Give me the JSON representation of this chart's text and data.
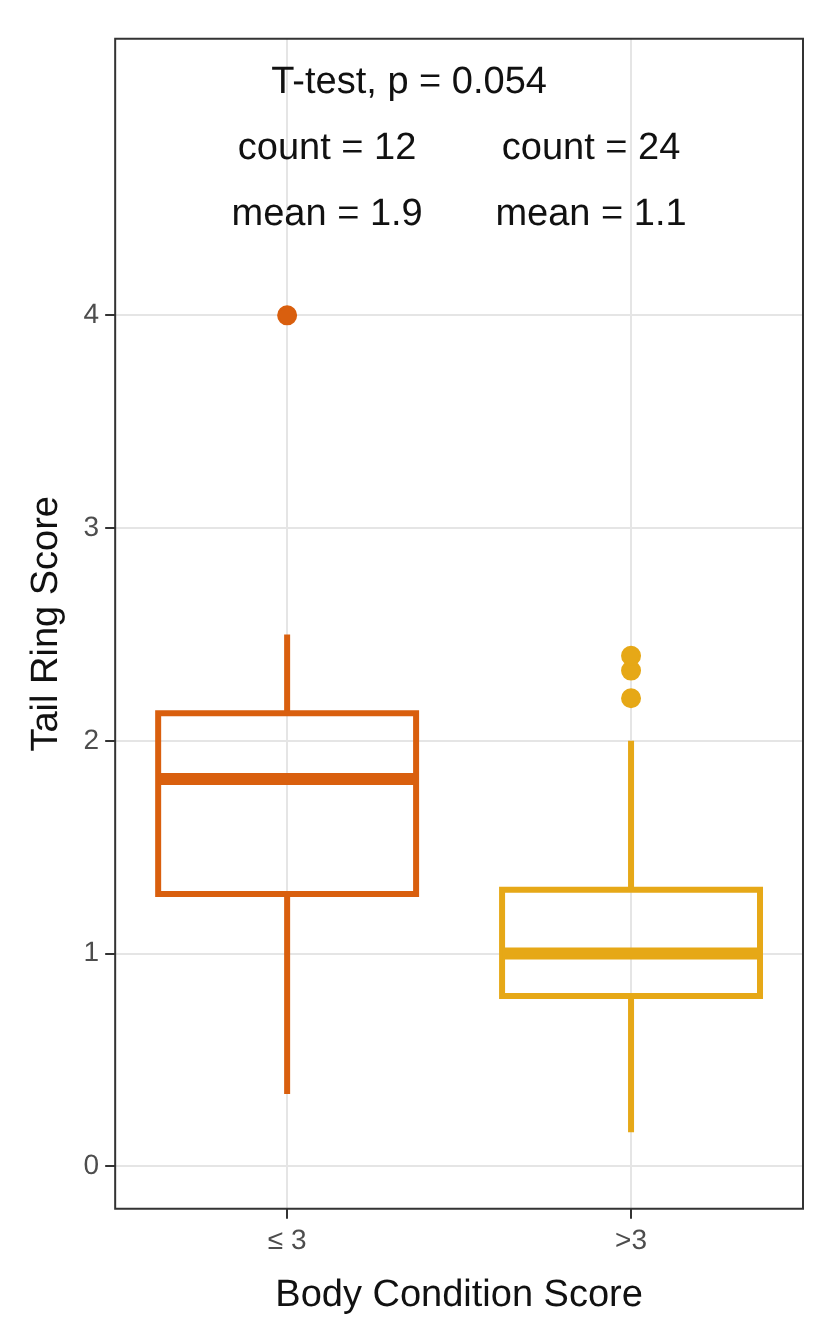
{
  "chart_data": {
    "type": "box",
    "xlabel": "Body Condition Score",
    "ylabel": "Tail Ring Score",
    "categories": [
      "≤ 3",
      ">3"
    ],
    "colors": [
      "#d95f0e",
      "#e6a817"
    ],
    "boxes": [
      {
        "low": 0.34,
        "q1": 1.28,
        "median": 1.82,
        "q3": 2.13,
        "high": 2.5,
        "outliers": [
          4
        ]
      },
      {
        "low": 0.16,
        "q1": 0.8,
        "median": 1.0,
        "q3": 1.3,
        "high": 2.0,
        "outliers": [
          2.2,
          2.33,
          2.4
        ]
      }
    ],
    "ylim": [
      -0.2,
      5.3
    ],
    "yticks": [
      0,
      1,
      2,
      3,
      4
    ],
    "grid": true,
    "annotations": [
      "T-test, p = 0.054",
      "count = 12",
      "count = 24",
      "mean = 1.9",
      "mean = 1.1"
    ]
  }
}
